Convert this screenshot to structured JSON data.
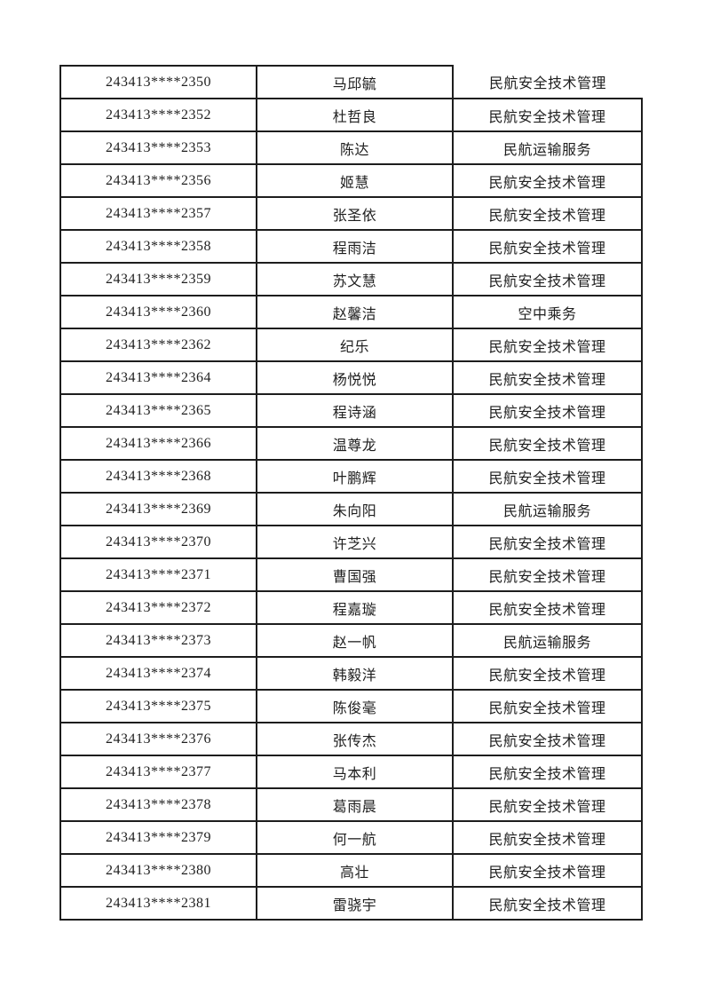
{
  "page": {
    "background": "#ffffff",
    "border_color": "#1d1d1d",
    "text_color": "#1e1e1e"
  },
  "table": {
    "rows": [
      {
        "id": "243413****2350",
        "name": "马邱毓",
        "major": "民航安全技术管理"
      },
      {
        "id": "243413****2352",
        "name": "杜哲良",
        "major": "民航安全技术管理"
      },
      {
        "id": "243413****2353",
        "name": "陈达",
        "major": "民航运输服务"
      },
      {
        "id": "243413****2356",
        "name": "姬慧",
        "major": "民航安全技术管理"
      },
      {
        "id": "243413****2357",
        "name": "张圣依",
        "major": "民航安全技术管理"
      },
      {
        "id": "243413****2358",
        "name": "程雨洁",
        "major": "民航安全技术管理"
      },
      {
        "id": "243413****2359",
        "name": "苏文慧",
        "major": "民航安全技术管理"
      },
      {
        "id": "243413****2360",
        "name": "赵馨洁",
        "major": "空中乘务"
      },
      {
        "id": "243413****2362",
        "name": "纪乐",
        "major": "民航安全技术管理"
      },
      {
        "id": "243413****2364",
        "name": "杨悦悦",
        "major": "民航安全技术管理"
      },
      {
        "id": "243413****2365",
        "name": "程诗涵",
        "major": "民航安全技术管理"
      },
      {
        "id": "243413****2366",
        "name": "温尊龙",
        "major": "民航安全技术管理"
      },
      {
        "id": "243413****2368",
        "name": "叶鹏辉",
        "major": "民航安全技术管理"
      },
      {
        "id": "243413****2369",
        "name": "朱向阳",
        "major": "民航运输服务"
      },
      {
        "id": "243413****2370",
        "name": "许芝兴",
        "major": "民航安全技术管理"
      },
      {
        "id": "243413****2371",
        "name": "曹国强",
        "major": "民航安全技术管理"
      },
      {
        "id": "243413****2372",
        "name": "程嘉璇",
        "major": "民航安全技术管理"
      },
      {
        "id": "243413****2373",
        "name": "赵一帆",
        "major": "民航运输服务"
      },
      {
        "id": "243413****2374",
        "name": "韩毅洋",
        "major": "民航安全技术管理"
      },
      {
        "id": "243413****2375",
        "name": "陈俊毫",
        "major": "民航安全技术管理"
      },
      {
        "id": "243413****2376",
        "name": "张传杰",
        "major": "民航安全技术管理"
      },
      {
        "id": "243413****2377",
        "name": "马本利",
        "major": "民航安全技术管理"
      },
      {
        "id": "243413****2378",
        "name": "葛雨晨",
        "major": "民航安全技术管理"
      },
      {
        "id": "243413****2379",
        "name": "何一航",
        "major": "民航安全技术管理"
      },
      {
        "id": "243413****2380",
        "name": "高壮",
        "major": "民航安全技术管理"
      },
      {
        "id": "243413****2381",
        "name": "雷骁宇",
        "major": "民航安全技术管理"
      }
    ]
  }
}
